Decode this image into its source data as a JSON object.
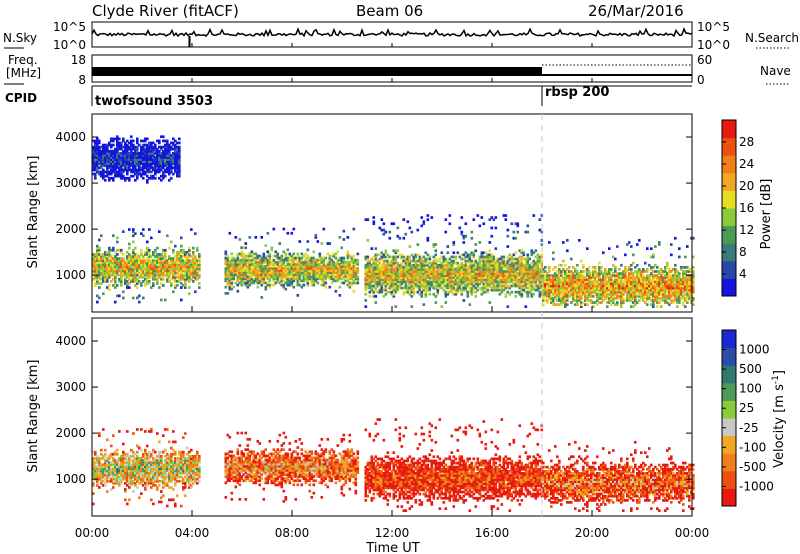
{
  "header": {
    "station": "Clyde River (fitACF)",
    "beam": "Beam 06",
    "date": "26/Mar/2016"
  },
  "noise_panel": {
    "left_label": "N.Sky",
    "left_ticks": [
      "10^5",
      "10^0"
    ],
    "right_ticks": [
      "10^5",
      "10^0"
    ],
    "right_label": "N.Search"
  },
  "freq_panel": {
    "left_label_1": "Freq.",
    "left_label_2": "[MHz]",
    "left_ticks": [
      "18",
      "8"
    ],
    "right_ticks": [
      "60",
      "0"
    ],
    "right_label": "Nave"
  },
  "cpid_panel": {
    "label": "CPID",
    "programs": [
      {
        "name": "twofsound 3503",
        "start": "00:00"
      },
      {
        "name": "rbsp 200",
        "start": "18:00"
      }
    ]
  },
  "x_axis": {
    "ticks": [
      "00:00",
      "04:00",
      "08:00",
      "12:00",
      "16:00",
      "20:00",
      "00:00"
    ],
    "label": "Time UT",
    "range_hours": [
      0,
      24
    ]
  },
  "colors": {
    "power_scale": [
      "#1515e0",
      "#2848a8",
      "#3a7a7a",
      "#4c9a58",
      "#8acb3c",
      "#e8dc24",
      "#f0a822",
      "#f07e1a",
      "#ee5010",
      "#e81a10"
    ],
    "velocity_scale": [
      "#e81a10",
      "#ee5010",
      "#f07e1a",
      "#f0a822",
      "#c8c8c8",
      "#8acb3c",
      "#4c9a58",
      "#2e7a72",
      "#2a4ea8",
      "#1a2ad0"
    ]
  },
  "chart_data": [
    {
      "type": "heatmap",
      "name": "power",
      "ylabel": "Slant Range [km]",
      "ylim": [
        200,
        4500
      ],
      "yticks": [
        1000,
        2000,
        3000,
        4000
      ],
      "xlim": [
        0,
        24
      ],
      "colorbar": {
        "label": "Power [dB]",
        "ticks": [
          "4",
          "8",
          "12",
          "16",
          "20",
          "24",
          "28"
        ],
        "range": [
          0,
          32
        ]
      },
      "blocks": [
        {
          "t0": 0.0,
          "t1": 4.3,
          "r0": 400,
          "r1": 2000,
          "mid": 1150,
          "spread": 450,
          "level": 0.62
        },
        {
          "t0": 0.0,
          "t1": 3.5,
          "r0": 3000,
          "r1": 4000,
          "mid": 3500,
          "spread": 500,
          "level": 0.1
        },
        {
          "t0": 5.3,
          "t1": 10.6,
          "r0": 500,
          "r1": 2000,
          "mid": 1100,
          "spread": 420,
          "level": 0.6
        },
        {
          "t0": 10.9,
          "t1": 18.0,
          "r0": 300,
          "r1": 2300,
          "mid": 1000,
          "spread": 520,
          "level": 0.6
        },
        {
          "t0": 18.0,
          "t1": 24.0,
          "r0": 300,
          "r1": 1800,
          "mid": 750,
          "spread": 480,
          "level": 0.7
        }
      ]
    },
    {
      "type": "heatmap",
      "name": "velocity",
      "ylabel": "Slant Range [km]",
      "ylim": [
        200,
        4500
      ],
      "yticks": [
        1000,
        2000,
        3000,
        4000
      ],
      "xlim": [
        0,
        24
      ],
      "colorbar": {
        "label": "Velocity [m s^-1]",
        "ticks": [
          "1000",
          "500",
          "100",
          "25",
          "-25",
          "-100",
          "-500",
          "-1000"
        ]
      },
      "blocks": [
        {
          "t0": 0.0,
          "t1": 4.3,
          "r0": 400,
          "r1": 2100,
          "mid": 1200,
          "spread": 450,
          "level": 0.5
        },
        {
          "t0": 5.3,
          "t1": 10.6,
          "r0": 500,
          "r1": 2000,
          "mid": 1250,
          "spread": 420,
          "level": 0.3
        },
        {
          "t0": 10.9,
          "t1": 18.0,
          "r0": 300,
          "r1": 2300,
          "mid": 1000,
          "spread": 520,
          "level": 0.15
        },
        {
          "t0": 18.0,
          "t1": 24.0,
          "r0": 300,
          "r1": 1800,
          "mid": 900,
          "spread": 480,
          "level": 0.25
        }
      ]
    }
  ]
}
